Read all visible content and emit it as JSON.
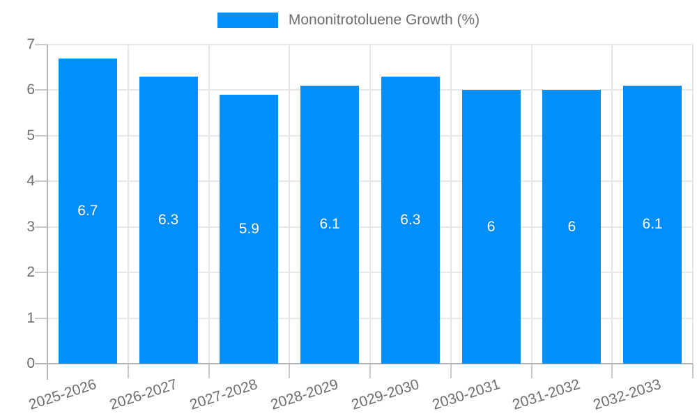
{
  "chart_data": {
    "type": "bar",
    "title": "",
    "xlabel": "",
    "ylabel": "",
    "legend": {
      "position": "top",
      "items": [
        {
          "label": "Mononitrotoluene Growth (%)",
          "color": "#008FFB"
        }
      ]
    },
    "categories": [
      "2025-2026",
      "2026-2027",
      "2027-2028",
      "2028-2029",
      "2029-2030",
      "2030-2031",
      "2031-2032",
      "2032-2033"
    ],
    "series": [
      {
        "name": "Mononitrotoluene Growth (%)",
        "values": [
          6.7,
          6.3,
          5.9,
          6.1,
          6.3,
          6.0,
          6.0,
          6.1
        ],
        "labels": [
          "6.7",
          "6.3",
          "5.9",
          "6.1",
          "6.3",
          "6",
          "6",
          "6.1"
        ]
      }
    ],
    "ylim": [
      0,
      7
    ],
    "yticks": [
      0,
      1,
      2,
      3,
      4,
      5,
      6,
      7
    ],
    "grid": true,
    "colors": {
      "bar": "#008FFB",
      "grid": "#e7e7e7",
      "tick": "#c9c9c9",
      "axis": "#b3b3b3",
      "label": "#6e6e6e",
      "value_label": "#ffffff",
      "background": "#ffffff"
    }
  }
}
